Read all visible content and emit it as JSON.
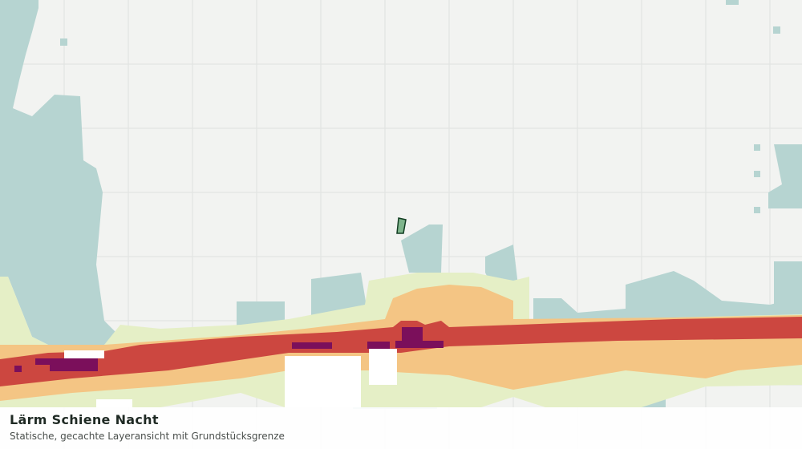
{
  "info": {
    "title": "Lärm Schiene Nacht",
    "subtitle": "Statische, gecachte Layeransicht mit Grundstücksgrenze"
  }
}
